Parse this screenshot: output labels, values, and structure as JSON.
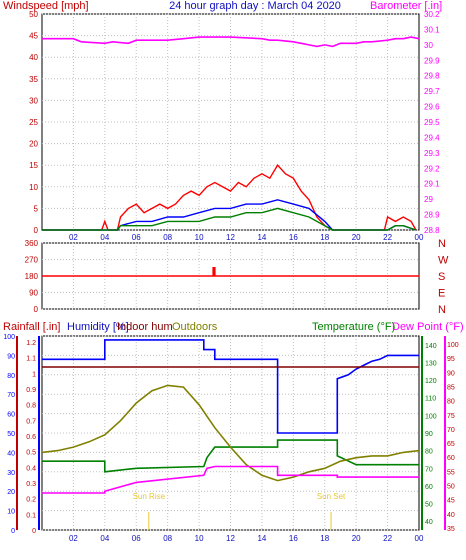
{
  "chart_data": [
    {
      "type": "line",
      "title": "24 hour graph day : March 04 2020",
      "ylabel": "Windspeed [mph]",
      "y2label": "Barometer [.in]",
      "x_ticks": [
        "02",
        "04",
        "06",
        "08",
        "10",
        "12",
        "14",
        "16",
        "18",
        "20",
        "22",
        "00"
      ],
      "ylim": [
        0,
        50
      ],
      "y_ticks": [
        "0",
        "5",
        "10",
        "15",
        "20",
        "25",
        "30",
        "35",
        "40",
        "45",
        "50"
      ],
      "y2lim": [
        28.8,
        30.2
      ],
      "y2_ticks": [
        "28.8",
        "28.9",
        "29",
        "29.1",
        "29.2",
        "29.3",
        "29.4",
        "29.5",
        "29.6",
        "29.7",
        "29.8",
        "29.9",
        "30",
        "30.1",
        "30.2"
      ],
      "colors": {
        "gust": "#ff0000",
        "average": "#0000ff",
        "wind": "#008000",
        "barometer": "#ff00ff"
      },
      "series": [
        {
          "role": "gust",
          "x": [
            0,
            3.8,
            4,
            4.2,
            4.8,
            5,
            5.5,
            6,
            6.5,
            7,
            7.5,
            8,
            8.5,
            9,
            9.5,
            10,
            10.5,
            11,
            11.5,
            12,
            12.5,
            13,
            13.5,
            14,
            14.5,
            15,
            15.5,
            16,
            16.5,
            17,
            17.5,
            18,
            18.5,
            19,
            21.8,
            22,
            22.5,
            23,
            23.5,
            23.8
          ],
          "y": [
            0,
            0,
            2,
            0,
            0,
            3,
            5,
            6,
            4,
            5,
            6,
            5,
            6,
            8,
            9,
            8,
            10,
            11,
            10,
            9,
            11,
            10,
            12,
            13,
            12,
            15,
            13,
            12,
            9,
            7,
            3,
            1,
            0,
            0,
            0,
            3,
            2,
            3,
            2,
            0
          ]
        },
        {
          "role": "average",
          "x": [
            0,
            4.8,
            5,
            6,
            7,
            8,
            9,
            10,
            11,
            12,
            13,
            14,
            15,
            16,
            17,
            18,
            18.5,
            19,
            22,
            22.5,
            23,
            23.8
          ],
          "y": [
            0,
            0,
            1,
            2,
            2,
            3,
            3,
            4,
            5,
            5,
            6,
            6,
            7,
            6,
            5,
            2,
            0,
            0,
            0,
            1,
            1,
            0
          ]
        },
        {
          "role": "wind",
          "x": [
            0,
            4.8,
            5,
            6,
            7,
            8,
            9,
            10,
            11,
            12,
            13,
            14,
            15,
            16,
            17,
            18,
            18.5,
            19,
            22,
            22.5,
            23,
            23.8
          ],
          "y": [
            0,
            0,
            1,
            1,
            1,
            2,
            2,
            2,
            3,
            3,
            4,
            4,
            5,
            4,
            3,
            1,
            0,
            0,
            0,
            1,
            1,
            0
          ]
        },
        {
          "role": "barometer",
          "x": [
            0,
            2,
            2.5,
            4,
            4.5,
            5.5,
            6,
            8,
            9,
            10,
            11,
            12,
            14,
            14.5,
            15,
            16,
            16.5,
            17,
            17.5,
            18,
            18.5,
            19,
            20,
            20.5,
            21,
            22,
            22.5,
            23,
            23.5,
            24
          ],
          "y": [
            30.04,
            30.04,
            30.02,
            30.01,
            30.02,
            30.01,
            30.03,
            30.03,
            30.04,
            30.05,
            30.05,
            30.05,
            30.04,
            30.03,
            30.03,
            30.02,
            30.01,
            30,
            29.99,
            30,
            29.99,
            30.01,
            30.01,
            30.02,
            30.02,
            30.03,
            30.04,
            30.04,
            30.05,
            30.04
          ]
        }
      ]
    },
    {
      "type": "line",
      "ylabel": "",
      "ylim": [
        0,
        360
      ],
      "y_ticks": [
        "0",
        "90",
        "180",
        "270",
        "360"
      ],
      "x_ticks": [
        "02",
        "04",
        "06",
        "08",
        "10",
        "12",
        "14",
        "16",
        "18",
        "20",
        "22",
        "00"
      ],
      "compass_labels": [
        "N",
        "W",
        "S",
        "E",
        "N"
      ],
      "color": "#ff0000",
      "series": [
        {
          "role": "wind-direction",
          "x": [
            0,
            10.9,
            10.9,
            11,
            11,
            24
          ],
          "y": [
            180,
            180,
            225,
            225,
            180,
            180
          ]
        }
      ]
    },
    {
      "type": "line",
      "labels": {
        "rainfall": "Rainfall [.in]",
        "humidity": "Humidity [%]",
        "indoor_hum": "Indoor hum",
        "outdoors": "Outdoors",
        "temperature": "Temperature (°F)",
        "dew_point": "Dew Point (°F)"
      },
      "x_ticks": [
        "02",
        "04",
        "06",
        "08",
        "10",
        "12",
        "14",
        "16",
        "18",
        "20",
        "22",
        "00"
      ],
      "rain_ticks": [
        "0",
        "0.1",
        "0.2",
        "0.3",
        "0.4",
        "0.5",
        "0.6",
        "0.7",
        "0.8",
        "0.9",
        "1",
        "1.1",
        "1.2"
      ],
      "humidity_ticks": [
        "0",
        "10",
        "20",
        "30",
        "40",
        "50",
        "60",
        "70",
        "80",
        "90",
        "100"
      ],
      "temp_ticks": [
        "40",
        "50",
        "60",
        "70",
        "80",
        "90",
        "100",
        "110",
        "120",
        "130",
        "140"
      ],
      "dew_ticks": [
        "35",
        "40",
        "45",
        "50",
        "55",
        "60",
        "65",
        "70",
        "75",
        "80",
        "85",
        "90",
        "95",
        "100"
      ],
      "humidity_lim": [
        0,
        100
      ],
      "temp_lim": [
        35,
        145
      ],
      "annotations": [
        {
          "text": "Sun Rise",
          "x": 6.8
        },
        {
          "text": "Sun Set",
          "x": 18.4
        }
      ],
      "colors": {
        "humidity": "#0000ff",
        "indoor": "#800000",
        "temperature": "#008000",
        "outdoor_temp": "#808000",
        "dew_point": "#ff00ff",
        "sun": "#e8c830"
      },
      "series": [
        {
          "role": "humidity",
          "x": [
            0,
            4,
            4,
            10.3,
            10.3,
            11,
            11,
            15,
            15,
            18.8,
            18.8,
            19.5,
            20,
            20.5,
            21,
            21.5,
            22,
            24
          ],
          "y": [
            88,
            88,
            98,
            98,
            93,
            93,
            88,
            88,
            50,
            50,
            78,
            80,
            83,
            85,
            87,
            88,
            90,
            90
          ]
        },
        {
          "role": "indoor-humidity",
          "x": [
            0,
            24
          ],
          "y": [
            84,
            84
          ]
        },
        {
          "role": "temperature",
          "x": [
            0,
            4,
            4,
            6,
            10.3,
            10.5,
            11,
            15,
            15,
            18.8,
            18.8,
            20,
            24
          ],
          "y": [
            74,
            74,
            68,
            70,
            71,
            76,
            82,
            82,
            86,
            86,
            77,
            72,
            72
          ]
        },
        {
          "role": "outdoor-temperature",
          "x": [
            0,
            1,
            2,
            3,
            4,
            5,
            6,
            7,
            8,
            9,
            10,
            11,
            12,
            13,
            14,
            15,
            16,
            17,
            18,
            19,
            20,
            21,
            22,
            23,
            24
          ],
          "y": [
            79,
            80,
            82,
            85,
            89,
            97,
            107,
            114,
            117,
            116,
            106,
            93,
            82,
            72,
            66,
            63,
            65,
            68,
            70,
            74,
            76,
            77,
            77,
            79,
            80
          ]
        },
        {
          "role": "dew-point",
          "x": [
            0,
            4,
            4,
            6,
            10.3,
            10.5,
            11,
            15,
            15,
            18.8,
            18.8,
            20,
            24
          ],
          "y": [
            56,
            56,
            57,
            62,
            66,
            70,
            71,
            71,
            66,
            66,
            65,
            65,
            65
          ]
        }
      ]
    }
  ]
}
